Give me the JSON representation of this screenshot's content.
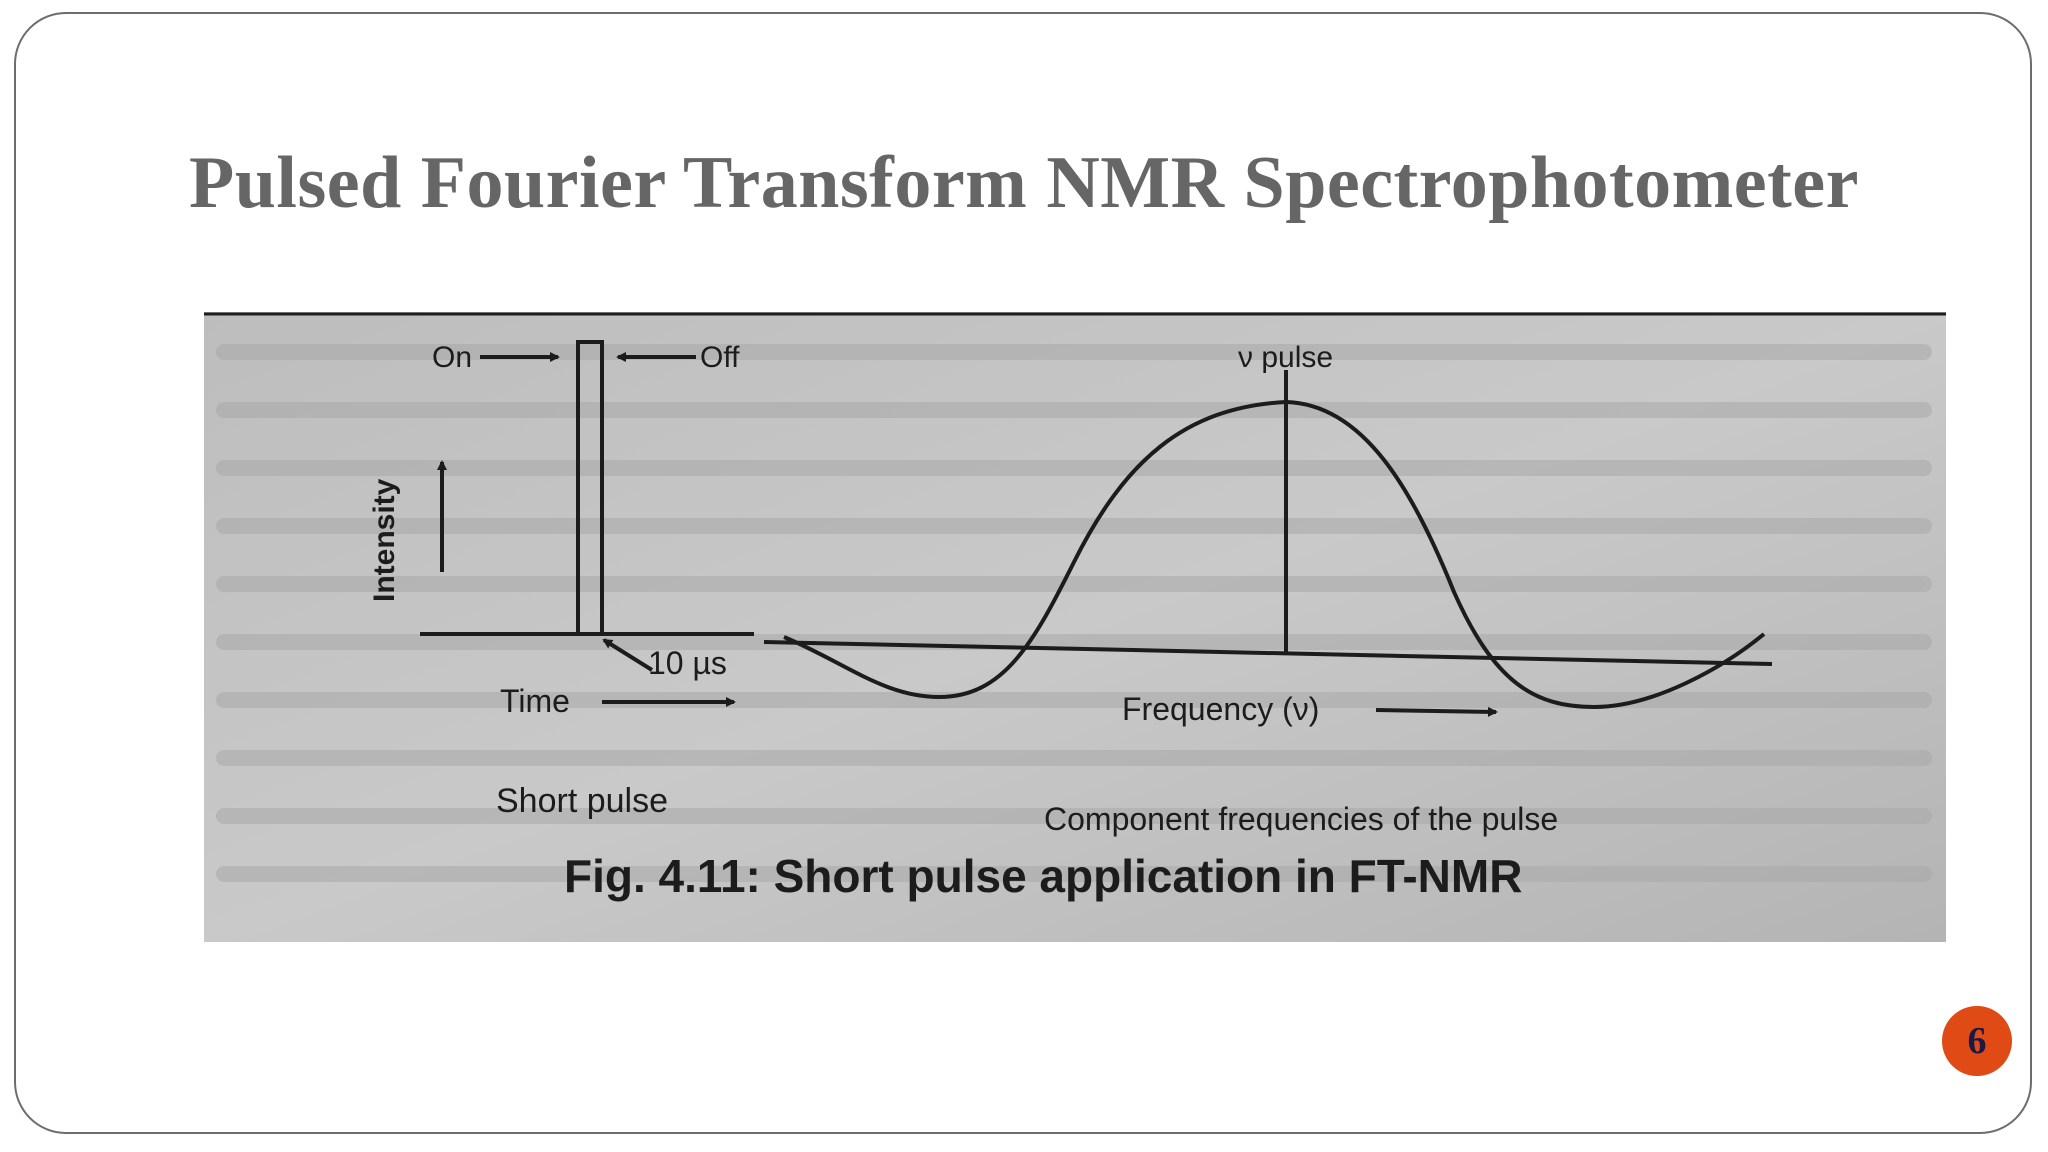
{
  "slide": {
    "title": "Pulsed Fourier Transform NMR Spectrophotometer",
    "page_number": "6",
    "accent_color": "#e04a14"
  },
  "figure": {
    "caption": "Fig. 4.11: Short pulse application in FT-NMR",
    "left_panel": {
      "on_label": "On",
      "off_label": "Off",
      "y_axis_label": "Intensity",
      "duration_label": "10 µs",
      "x_axis_label": "Time",
      "caption": "Short pulse"
    },
    "right_panel": {
      "peak_label": "ν pulse",
      "x_axis_label": "Frequency (ν)",
      "caption": "Component frequencies of the pulse"
    }
  }
}
